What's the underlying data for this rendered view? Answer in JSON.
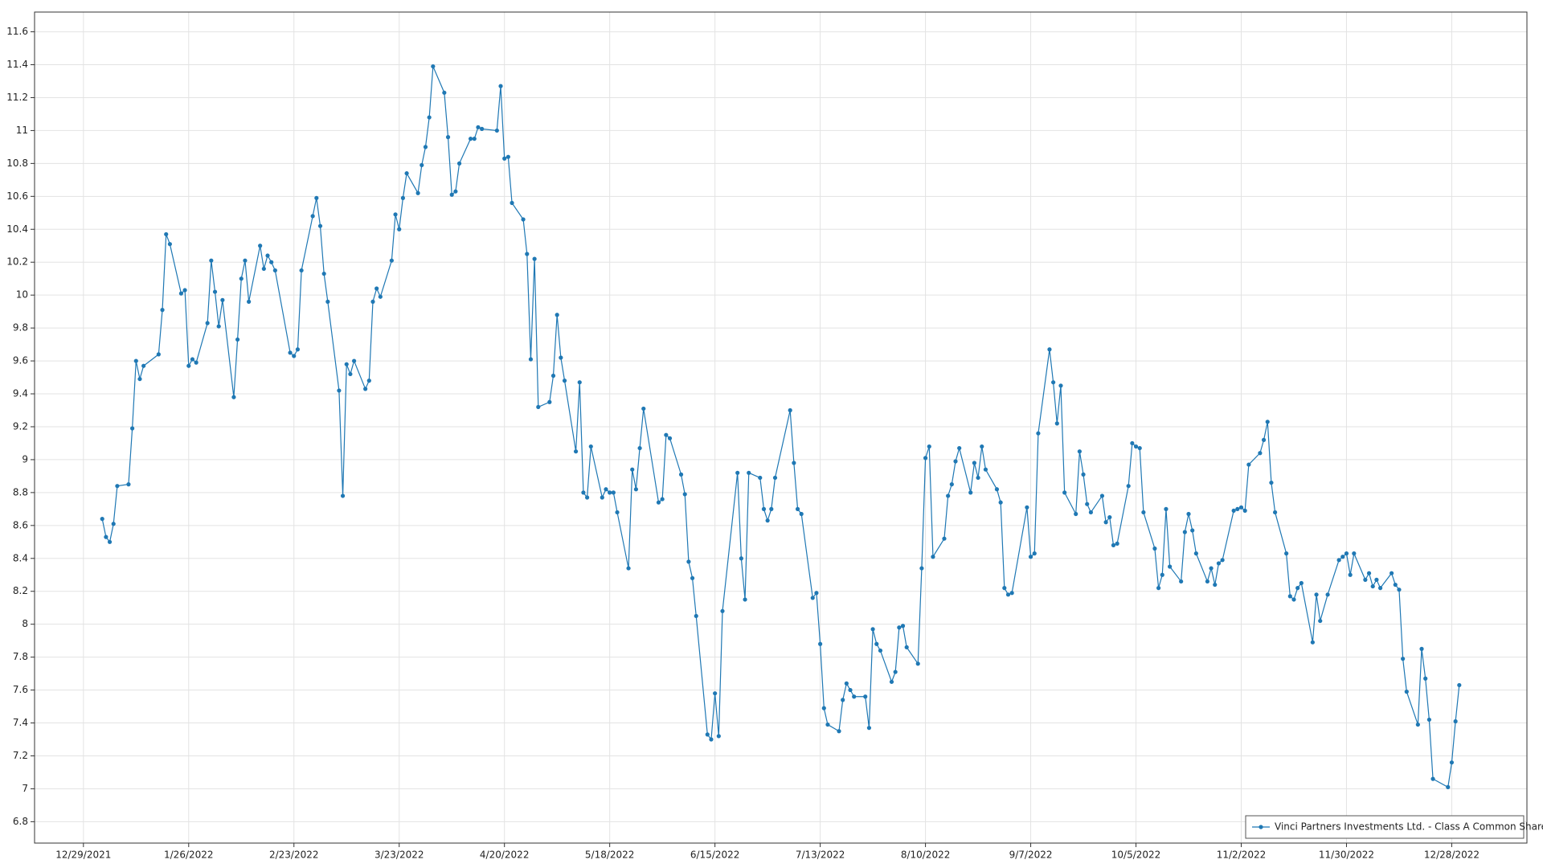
{
  "chart_data": {
    "type": "line",
    "x": [
      "1/3/2022",
      "1/4/2022",
      "1/5/2022",
      "1/6/2022",
      "1/7/2022",
      "1/10/2022",
      "1/11/2022",
      "1/12/2022",
      "1/13/2022",
      "1/14/2022",
      "1/18/2022",
      "1/19/2022",
      "1/20/2022",
      "1/21/2022",
      "1/24/2022",
      "1/25/2022",
      "1/26/2022",
      "1/27/2022",
      "1/28/2022",
      "1/31/2022",
      "2/1/2022",
      "2/2/2022",
      "2/3/2022",
      "2/4/2022",
      "2/7/2022",
      "2/8/2022",
      "2/9/2022",
      "2/10/2022",
      "2/11/2022",
      "2/14/2022",
      "2/15/2022",
      "2/16/2022",
      "2/17/2022",
      "2/18/2022",
      "2/22/2022",
      "2/23/2022",
      "2/24/2022",
      "2/25/2022",
      "2/28/2022",
      "3/1/2022",
      "3/2/2022",
      "3/3/2022",
      "3/4/2022",
      "3/7/2022",
      "3/8/2022",
      "3/9/2022",
      "3/10/2022",
      "3/11/2022",
      "3/14/2022",
      "3/15/2022",
      "3/16/2022",
      "3/17/2022",
      "3/18/2022",
      "3/21/2022",
      "3/22/2022",
      "3/23/2022",
      "3/24/2022",
      "3/25/2022",
      "3/28/2022",
      "3/29/2022",
      "3/30/2022",
      "3/31/2022",
      "4/1/2022",
      "4/4/2022",
      "4/5/2022",
      "4/6/2022",
      "4/7/2022",
      "4/8/2022",
      "4/11/2022",
      "4/12/2022",
      "4/13/2022",
      "4/14/2022",
      "4/18/2022",
      "4/19/2022",
      "4/20/2022",
      "4/21/2022",
      "4/22/2022",
      "4/25/2022",
      "4/26/2022",
      "4/27/2022",
      "4/28/2022",
      "4/29/2022",
      "5/2/2022",
      "5/3/2022",
      "5/4/2022",
      "5/5/2022",
      "5/6/2022",
      "5/9/2022",
      "5/10/2022",
      "5/11/2022",
      "5/12/2022",
      "5/13/2022",
      "5/16/2022",
      "5/17/2022",
      "5/18/2022",
      "5/19/2022",
      "5/20/2022",
      "5/23/2022",
      "5/24/2022",
      "5/25/2022",
      "5/26/2022",
      "5/27/2022",
      "5/31/2022",
      "6/1/2022",
      "6/2/2022",
      "6/3/2022",
      "6/6/2022",
      "6/7/2022",
      "6/8/2022",
      "6/9/2022",
      "6/10/2022",
      "6/13/2022",
      "6/14/2022",
      "6/15/2022",
      "6/16/2022",
      "6/17/2022",
      "6/21/2022",
      "6/22/2022",
      "6/23/2022",
      "6/24/2022",
      "6/27/2022",
      "6/28/2022",
      "6/29/2022",
      "6/30/2022",
      "7/1/2022",
      "7/5/2022",
      "7/6/2022",
      "7/7/2022",
      "7/8/2022",
      "7/11/2022",
      "7/12/2022",
      "7/13/2022",
      "7/14/2022",
      "7/15/2022",
      "7/18/2022",
      "7/19/2022",
      "7/20/2022",
      "7/21/2022",
      "7/22/2022",
      "7/25/2022",
      "7/26/2022",
      "7/27/2022",
      "7/28/2022",
      "7/29/2022",
      "8/1/2022",
      "8/2/2022",
      "8/3/2022",
      "8/4/2022",
      "8/5/2022",
      "8/8/2022",
      "8/9/2022",
      "8/10/2022",
      "8/11/2022",
      "8/12/2022",
      "8/15/2022",
      "8/16/2022",
      "8/17/2022",
      "8/18/2022",
      "8/19/2022",
      "8/22/2022",
      "8/23/2022",
      "8/24/2022",
      "8/25/2022",
      "8/26/2022",
      "8/29/2022",
      "8/30/2022",
      "8/31/2022",
      "9/1/2022",
      "9/2/2022",
      "9/6/2022",
      "9/7/2022",
      "9/8/2022",
      "9/9/2022",
      "9/12/2022",
      "9/13/2022",
      "9/14/2022",
      "9/15/2022",
      "9/16/2022",
      "9/19/2022",
      "9/20/2022",
      "9/21/2022",
      "9/22/2022",
      "9/23/2022",
      "9/26/2022",
      "9/27/2022",
      "9/28/2022",
      "9/29/2022",
      "9/30/2022",
      "10/3/2022",
      "10/4/2022",
      "10/5/2022",
      "10/6/2022",
      "10/7/2022",
      "10/10/2022",
      "10/11/2022",
      "10/12/2022",
      "10/13/2022",
      "10/14/2022",
      "10/17/2022",
      "10/18/2022",
      "10/19/2022",
      "10/20/2022",
      "10/21/2022",
      "10/24/2022",
      "10/25/2022",
      "10/26/2022",
      "10/27/2022",
      "10/28/2022",
      "10/31/2022",
      "11/1/2022",
      "11/2/2022",
      "11/3/2022",
      "11/4/2022",
      "11/7/2022",
      "11/8/2022",
      "11/9/2022",
      "11/10/2022",
      "11/11/2022",
      "11/14/2022",
      "11/15/2022",
      "11/16/2022",
      "11/17/2022",
      "11/18/2022",
      "11/21/2022",
      "11/22/2022",
      "11/23/2022",
      "11/25/2022",
      "11/28/2022",
      "11/29/2022",
      "11/30/2022",
      "12/1/2022",
      "12/2/2022",
      "12/5/2022",
      "12/6/2022",
      "12/7/2022",
      "12/8/2022",
      "12/9/2022",
      "12/12/2022",
      "12/13/2022",
      "12/14/2022",
      "12/15/2022",
      "12/16/2022",
      "12/19/2022",
      "12/20/2022",
      "12/21/2022",
      "12/22/2022",
      "12/23/2022",
      "12/27/2022",
      "12/28/2022",
      "12/29/2022",
      "12/30/2022"
    ],
    "series": [
      {
        "name": "Vinci Partners Investments Ltd. - Class A Common Shares",
        "color": "#1f78b4",
        "values": [
          8.64,
          8.53,
          8.5,
          8.61,
          8.84,
          8.85,
          9.19,
          9.6,
          9.49,
          9.57,
          9.64,
          9.91,
          10.37,
          10.31,
          10.01,
          10.03,
          9.57,
          9.61,
          9.59,
          9.83,
          10.21,
          10.02,
          9.81,
          9.97,
          9.38,
          9.73,
          10.1,
          10.21,
          9.96,
          10.3,
          10.16,
          10.24,
          10.2,
          10.15,
          9.65,
          9.63,
          9.67,
          10.15,
          10.48,
          10.59,
          10.42,
          10.13,
          9.96,
          9.42,
          8.78,
          9.58,
          9.52,
          9.6,
          9.43,
          9.48,
          9.96,
          10.04,
          9.99,
          10.21,
          10.49,
          10.4,
          10.59,
          10.74,
          10.62,
          10.79,
          10.9,
          11.08,
          11.39,
          11.23,
          10.96,
          10.61,
          10.63,
          10.8,
          10.95,
          10.95,
          11.02,
          11.01,
          11.0,
          11.27,
          10.83,
          10.84,
          10.56,
          10.46,
          10.25,
          9.61,
          10.22,
          9.32,
          9.35,
          9.51,
          9.88,
          9.62,
          9.48,
          9.05,
          9.47,
          8.8,
          8.77,
          9.08,
          8.77,
          8.82,
          8.8,
          8.8,
          8.68,
          8.34,
          8.94,
          8.82,
          9.07,
          9.31,
          8.74,
          8.76,
          9.15,
          9.13,
          8.91,
          8.79,
          8.38,
          8.28,
          8.05,
          7.33,
          7.3,
          7.58,
          7.32,
          8.08,
          8.92,
          8.4,
          8.15,
          8.92,
          8.89,
          8.7,
          8.63,
          8.7,
          8.89,
          9.3,
          8.98,
          8.7,
          8.67,
          8.16,
          8.19,
          7.88,
          7.49,
          7.39,
          7.35,
          7.54,
          7.64,
          7.6,
          7.56,
          7.56,
          7.37,
          7.97,
          7.88,
          7.84,
          7.65,
          7.71,
          7.98,
          7.99,
          7.86,
          7.76,
          8.34,
          9.01,
          9.08,
          8.41,
          8.52,
          8.78,
          8.85,
          8.99,
          9.07,
          8.8,
          8.98,
          8.89,
          9.08,
          8.94,
          8.82,
          8.74,
          8.22,
          8.18,
          8.19,
          8.71,
          8.41,
          8.43,
          9.16,
          9.67,
          9.47,
          9.22,
          9.45,
          8.8,
          8.67,
          9.05,
          8.91,
          8.73,
          8.68,
          8.78,
          8.62,
          8.65,
          8.48,
          8.49,
          8.84,
          9.1,
          9.08,
          9.07,
          8.68,
          8.46,
          8.22,
          8.3,
          8.7,
          8.35,
          8.26,
          8.56,
          8.67,
          8.57,
          8.43,
          8.26,
          8.34,
          8.24,
          8.37,
          8.39,
          8.69,
          8.7,
          8.71,
          8.69,
          8.97,
          9.04,
          9.12,
          9.23,
          8.86,
          8.68,
          8.43,
          8.17,
          8.15,
          8.22,
          8.25,
          7.89,
          8.18,
          8.02,
          8.18,
          8.39,
          8.41,
          8.43,
          8.3,
          8.43,
          8.27,
          8.31,
          8.23,
          8.27,
          8.22,
          8.31,
          8.24,
          8.21,
          7.79,
          7.59,
          7.39,
          7.85,
          7.67,
          7.42,
          7.06,
          7.01,
          7.16,
          7.41,
          7.63
        ]
      }
    ],
    "xlim": [
      "12/16/2021",
      "1/17/2023"
    ],
    "xticks": [
      "12/29/2021",
      "1/26/2022",
      "2/23/2022",
      "3/23/2022",
      "4/20/2022",
      "5/18/2022",
      "6/15/2022",
      "7/13/2022",
      "8/10/2022",
      "9/7/2022",
      "10/5/2022",
      "11/2/2022",
      "11/30/2022",
      "12/28/2022"
    ],
    "ylim": [
      6.67,
      11.72
    ],
    "yticks": [
      6.8,
      7,
      7.2,
      7.4,
      7.6,
      7.8,
      8,
      8.2,
      8.4,
      8.6,
      8.8,
      9,
      9.2,
      9.4,
      9.6,
      9.8,
      10,
      10.2,
      10.4,
      10.6,
      10.8,
      11,
      11.2,
      11.4,
      11.6
    ],
    "grid": true,
    "legend": "lower right"
  }
}
